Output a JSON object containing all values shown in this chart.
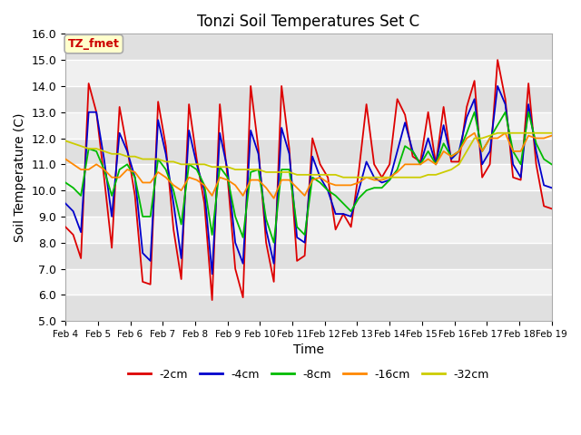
{
  "title": "Tonzi Soil Temperatures Set C",
  "xlabel": "Time",
  "ylabel": "Soil Temperature (C)",
  "ylim": [
    5.0,
    16.0
  ],
  "yticks": [
    5.0,
    6.0,
    7.0,
    8.0,
    9.0,
    10.0,
    11.0,
    12.0,
    13.0,
    14.0,
    15.0,
    16.0
  ],
  "xtick_labels": [
    "Feb 4",
    "Feb 5",
    "Feb 6",
    "Feb 7",
    "Feb 8",
    "Feb 9",
    "Feb 10",
    "Feb 11",
    "Feb 12",
    "Feb 13",
    "Feb 14",
    "Feb 15",
    "Feb 16",
    "Feb 17",
    "Feb 18",
    "Feb 19"
  ],
  "annotation_label": "TZ_fmet",
  "annotation_color": "#cc0000",
  "annotation_bg": "#ffffcc",
  "annotation_border": "#aaaaaa",
  "colors": {
    "-2cm": "#dd0000",
    "-4cm": "#0000cc",
    "-8cm": "#00bb00",
    "-16cm": "#ff8800",
    "-32cm": "#cccc00"
  },
  "band_light": "#f0f0f0",
  "band_dark": "#e0e0e0",
  "grid_color": "#ffffff",
  "fig_bg": "#ffffff",
  "series": {
    "-2cm": [
      8.6,
      8.3,
      7.4,
      14.1,
      13.0,
      10.5,
      7.8,
      13.2,
      11.6,
      9.8,
      6.5,
      6.4,
      13.4,
      11.7,
      8.5,
      6.6,
      13.3,
      11.2,
      9.5,
      5.8,
      13.3,
      10.5,
      7.0,
      5.9,
      14.0,
      11.6,
      8.0,
      6.5,
      14.0,
      11.6,
      7.3,
      7.5,
      12.0,
      11.0,
      10.5,
      8.5,
      9.1,
      8.6,
      10.7,
      13.3,
      11.0,
      10.5,
      11.0,
      13.5,
      12.9,
      11.3,
      11.1,
      13.0,
      11.0,
      13.2,
      11.1,
      11.1,
      13.2,
      14.2,
      10.5,
      11.0,
      15.0,
      13.5,
      10.5,
      10.4,
      14.1,
      11.0,
      9.4,
      9.3
    ],
    "-4cm": [
      9.5,
      9.2,
      8.4,
      13.0,
      13.0,
      11.2,
      9.0,
      12.2,
      11.5,
      10.5,
      7.6,
      7.3,
      12.7,
      11.4,
      9.5,
      7.4,
      12.3,
      11.0,
      10.0,
      6.8,
      12.2,
      10.8,
      8.0,
      7.2,
      12.3,
      11.4,
      8.5,
      7.2,
      12.4,
      11.4,
      8.2,
      8.0,
      11.3,
      10.5,
      10.0,
      9.1,
      9.1,
      9.0,
      10.0,
      11.1,
      10.5,
      10.3,
      10.4,
      11.5,
      12.6,
      11.5,
      11.0,
      12.0,
      11.0,
      12.5,
      11.2,
      11.5,
      12.8,
      13.5,
      11.0,
      11.5,
      14.0,
      13.3,
      11.0,
      10.5,
      13.3,
      11.5,
      10.2,
      10.1
    ],
    "-8cm": [
      10.3,
      10.1,
      9.8,
      11.6,
      11.5,
      10.8,
      9.8,
      10.8,
      11.0,
      10.5,
      9.0,
      9.0,
      11.2,
      10.8,
      10.0,
      8.7,
      11.0,
      10.8,
      10.2,
      8.3,
      10.9,
      10.5,
      9.0,
      8.2,
      10.7,
      10.8,
      8.9,
      8.0,
      10.8,
      10.8,
      8.6,
      8.3,
      10.5,
      10.3,
      10.0,
      9.8,
      9.5,
      9.2,
      9.7,
      10.0,
      10.1,
      10.1,
      10.4,
      10.8,
      11.7,
      11.5,
      11.0,
      11.5,
      11.0,
      11.8,
      11.3,
      11.5,
      12.2,
      13.0,
      11.5,
      12.0,
      12.5,
      13.0,
      11.5,
      11.0,
      13.0,
      11.8,
      11.2,
      11.0
    ],
    "-16cm": [
      11.2,
      11.0,
      10.8,
      10.8,
      11.0,
      10.8,
      10.5,
      10.5,
      10.8,
      10.7,
      10.3,
      10.3,
      10.7,
      10.5,
      10.2,
      10.0,
      10.5,
      10.4,
      10.2,
      9.8,
      10.5,
      10.4,
      10.2,
      9.8,
      10.4,
      10.4,
      10.1,
      9.7,
      10.4,
      10.4,
      10.1,
      9.8,
      10.4,
      10.5,
      10.3,
      10.2,
      10.2,
      10.2,
      10.3,
      10.5,
      10.4,
      10.4,
      10.5,
      10.7,
      11.0,
      11.0,
      11.0,
      11.2,
      11.0,
      11.5,
      11.3,
      11.5,
      12.0,
      12.2,
      11.5,
      12.0,
      12.0,
      12.2,
      11.5,
      11.5,
      12.1,
      12.0,
      12.0,
      12.1
    ],
    "-32cm": [
      11.9,
      11.8,
      11.7,
      11.6,
      11.6,
      11.5,
      11.4,
      11.4,
      11.3,
      11.3,
      11.2,
      11.2,
      11.2,
      11.1,
      11.1,
      11.0,
      11.0,
      11.0,
      11.0,
      10.9,
      10.9,
      10.9,
      10.8,
      10.8,
      10.8,
      10.8,
      10.7,
      10.7,
      10.7,
      10.7,
      10.6,
      10.6,
      10.6,
      10.6,
      10.6,
      10.6,
      10.5,
      10.5,
      10.5,
      10.5,
      10.5,
      10.5,
      10.5,
      10.5,
      10.5,
      10.5,
      10.5,
      10.6,
      10.6,
      10.7,
      10.8,
      11.0,
      11.5,
      12.0,
      12.0,
      12.1,
      12.2,
      12.2,
      12.2,
      12.2,
      12.2,
      12.2,
      12.2,
      12.2
    ]
  }
}
